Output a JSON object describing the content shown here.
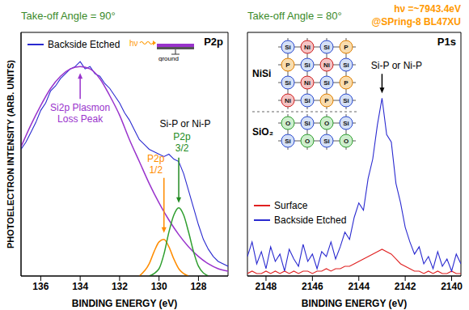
{
  "chart_data": [
    {
      "type": "line",
      "title": "Take-off Angle = 90°",
      "panel_label": "P2p",
      "xlabel": "BINDING ENERGY (eV)",
      "ylabel": "PHOTOELECTRON INTENSITY (ARB. UNITS)",
      "xlim": [
        137,
        126.5
      ],
      "xticks": [
        136,
        134,
        132,
        130,
        128
      ],
      "ylim": [
        0,
        100
      ],
      "tick_labels": "x",
      "legend": "upper left",
      "inset": {
        "labels": [
          "hν",
          "ground"
        ]
      },
      "series": [
        {
          "name": "Backside Etched",
          "color": "#2a2ad0",
          "x": [
            137,
            136.75,
            136.5,
            136.25,
            136,
            135.75,
            135.5,
            135.25,
            135,
            134.75,
            134.5,
            134.25,
            134,
            133.75,
            133.5,
            133.25,
            133,
            132.75,
            132.5,
            132.25,
            132,
            131.75,
            131.5,
            131.25,
            131,
            130.75,
            130.5,
            130.25,
            130,
            129.75,
            129.5,
            129.25,
            129,
            128.75,
            128.5,
            128.25,
            128,
            127.75,
            127.5,
            127.25,
            127,
            126.75,
            126.5
          ],
          "values": [
            52,
            55,
            59,
            63,
            68,
            71,
            76,
            78,
            81,
            83,
            85,
            86,
            88,
            85,
            86,
            83,
            82,
            79,
            77,
            74,
            71,
            67,
            64,
            60,
            56,
            54,
            52,
            51,
            50,
            49,
            50,
            48,
            47,
            42,
            35,
            28,
            21,
            15,
            11,
            8,
            6,
            5,
            4
          ]
        },
        {
          "color": "#9933cc",
          "x": [
            137,
            136.5,
            136,
            135.5,
            135,
            134.5,
            134,
            133.5,
            133,
            132.5,
            132,
            131.5,
            131,
            130.5,
            130,
            129.5,
            129,
            128.5,
            128,
            127.5,
            127,
            126.5
          ],
          "values": [
            53,
            62,
            70,
            77,
            82,
            85,
            86,
            85,
            81,
            74,
            66,
            56,
            47,
            38,
            30,
            23,
            17,
            12,
            8,
            5,
            3,
            2
          ]
        },
        {
          "color": "#ff8c00",
          "x": [
            131,
            130.5,
            130.25,
            130,
            129.75,
            129.5,
            129.25,
            129,
            128.5
          ],
          "values": [
            0,
            5,
            10,
            14,
            15,
            12,
            7,
            3,
            0
          ]
        },
        {
          "color": "#2e9e2e",
          "x": [
            130.5,
            130,
            129.75,
            129.5,
            129.25,
            129,
            128.75,
            128.5,
            128.25,
            128,
            127.5
          ],
          "values": [
            0,
            3,
            9,
            18,
            25,
            28,
            25,
            18,
            10,
            4,
            0
          ]
        }
      ],
      "annotations": [
        {
          "text": "Si2p Plasmon Loss Peak",
          "x": 134,
          "y": 86
        },
        {
          "text": "Si-P or Ni-P",
          "x": 129,
          "y": 28
        },
        {
          "text": "P2p 1/2",
          "x": 129.75,
          "y": 15
        },
        {
          "text": "P2p 3/2",
          "x": 129,
          "y": 28
        }
      ]
    },
    {
      "type": "line",
      "title": "Take-off Angle = 80°",
      "subtitle_lines": [
        "hν =~7943.4eV",
        "@SPring-8 BL47XU"
      ],
      "panel_label": "P1s",
      "xlabel": "BINDING ENERGY (eV)",
      "xlim": [
        2148.8,
        2139.6
      ],
      "xticks": [
        2148,
        2146,
        2144,
        2142,
        2140
      ],
      "ylim": [
        0,
        100
      ],
      "tick_labels": "x",
      "legend": "lower left",
      "x": [
        2148.8,
        2148.6,
        2148.4,
        2148.2,
        2148,
        2147.8,
        2147.6,
        2147.4,
        2147.2,
        2147,
        2146.8,
        2146.6,
        2146.4,
        2146.2,
        2146,
        2145.8,
        2145.6,
        2145.4,
        2145.2,
        2145,
        2144.8,
        2144.6,
        2144.4,
        2144.2,
        2144,
        2143.8,
        2143.6,
        2143.4,
        2143.2,
        2143,
        2142.8,
        2142.6,
        2142.4,
        2142.2,
        2142,
        2141.8,
        2141.6,
        2141.4,
        2141.2,
        2141,
        2140.8,
        2140.6,
        2140.4,
        2140.2,
        2140,
        2139.8,
        2139.6
      ],
      "series": [
        {
          "name": "Surface",
          "color": "#e02020",
          "values": [
            1,
            2,
            1,
            1,
            2,
            1,
            2,
            1,
            2,
            1,
            2,
            1,
            2,
            2,
            1,
            2,
            2,
            3,
            2,
            3,
            3,
            4,
            4,
            5,
            6,
            7,
            8,
            9,
            10,
            11,
            10,
            9,
            7,
            5,
            4,
            3,
            2,
            2,
            1,
            2,
            1,
            2,
            1,
            1,
            2,
            1,
            1
          ]
        },
        {
          "name": "Backside Etched",
          "color": "#2a2ad0",
          "values": [
            8,
            14,
            5,
            10,
            3,
            12,
            6,
            9,
            2,
            11,
            7,
            4,
            13,
            6,
            9,
            3,
            10,
            8,
            14,
            7,
            12,
            18,
            15,
            24,
            30,
            27,
            40,
            48,
            62,
            73,
            58,
            55,
            38,
            30,
            20,
            14,
            9,
            12,
            5,
            8,
            3,
            10,
            4,
            7,
            2,
            9,
            5
          ]
        }
      ],
      "annotations": [
        {
          "text": "Si-P or Ni-P",
          "x": 2143,
          "y": 73
        }
      ]
    }
  ],
  "diagram": {
    "layers": [
      {
        "label": "NiSi",
        "rows": [
          [
            "Si",
            "Ni",
            "Si",
            "P"
          ],
          [
            "P",
            "Si",
            "Ni",
            "Si"
          ],
          [
            "Si",
            "Ni",
            "Si",
            "P"
          ],
          [
            "Ni",
            "Si",
            "P",
            "Si"
          ]
        ]
      },
      {
        "label": "SiO₂",
        "rows": [
          [
            "O",
            "Si",
            "O",
            "Si"
          ],
          [
            "Si",
            "O",
            "Si",
            "O"
          ]
        ]
      }
    ]
  }
}
